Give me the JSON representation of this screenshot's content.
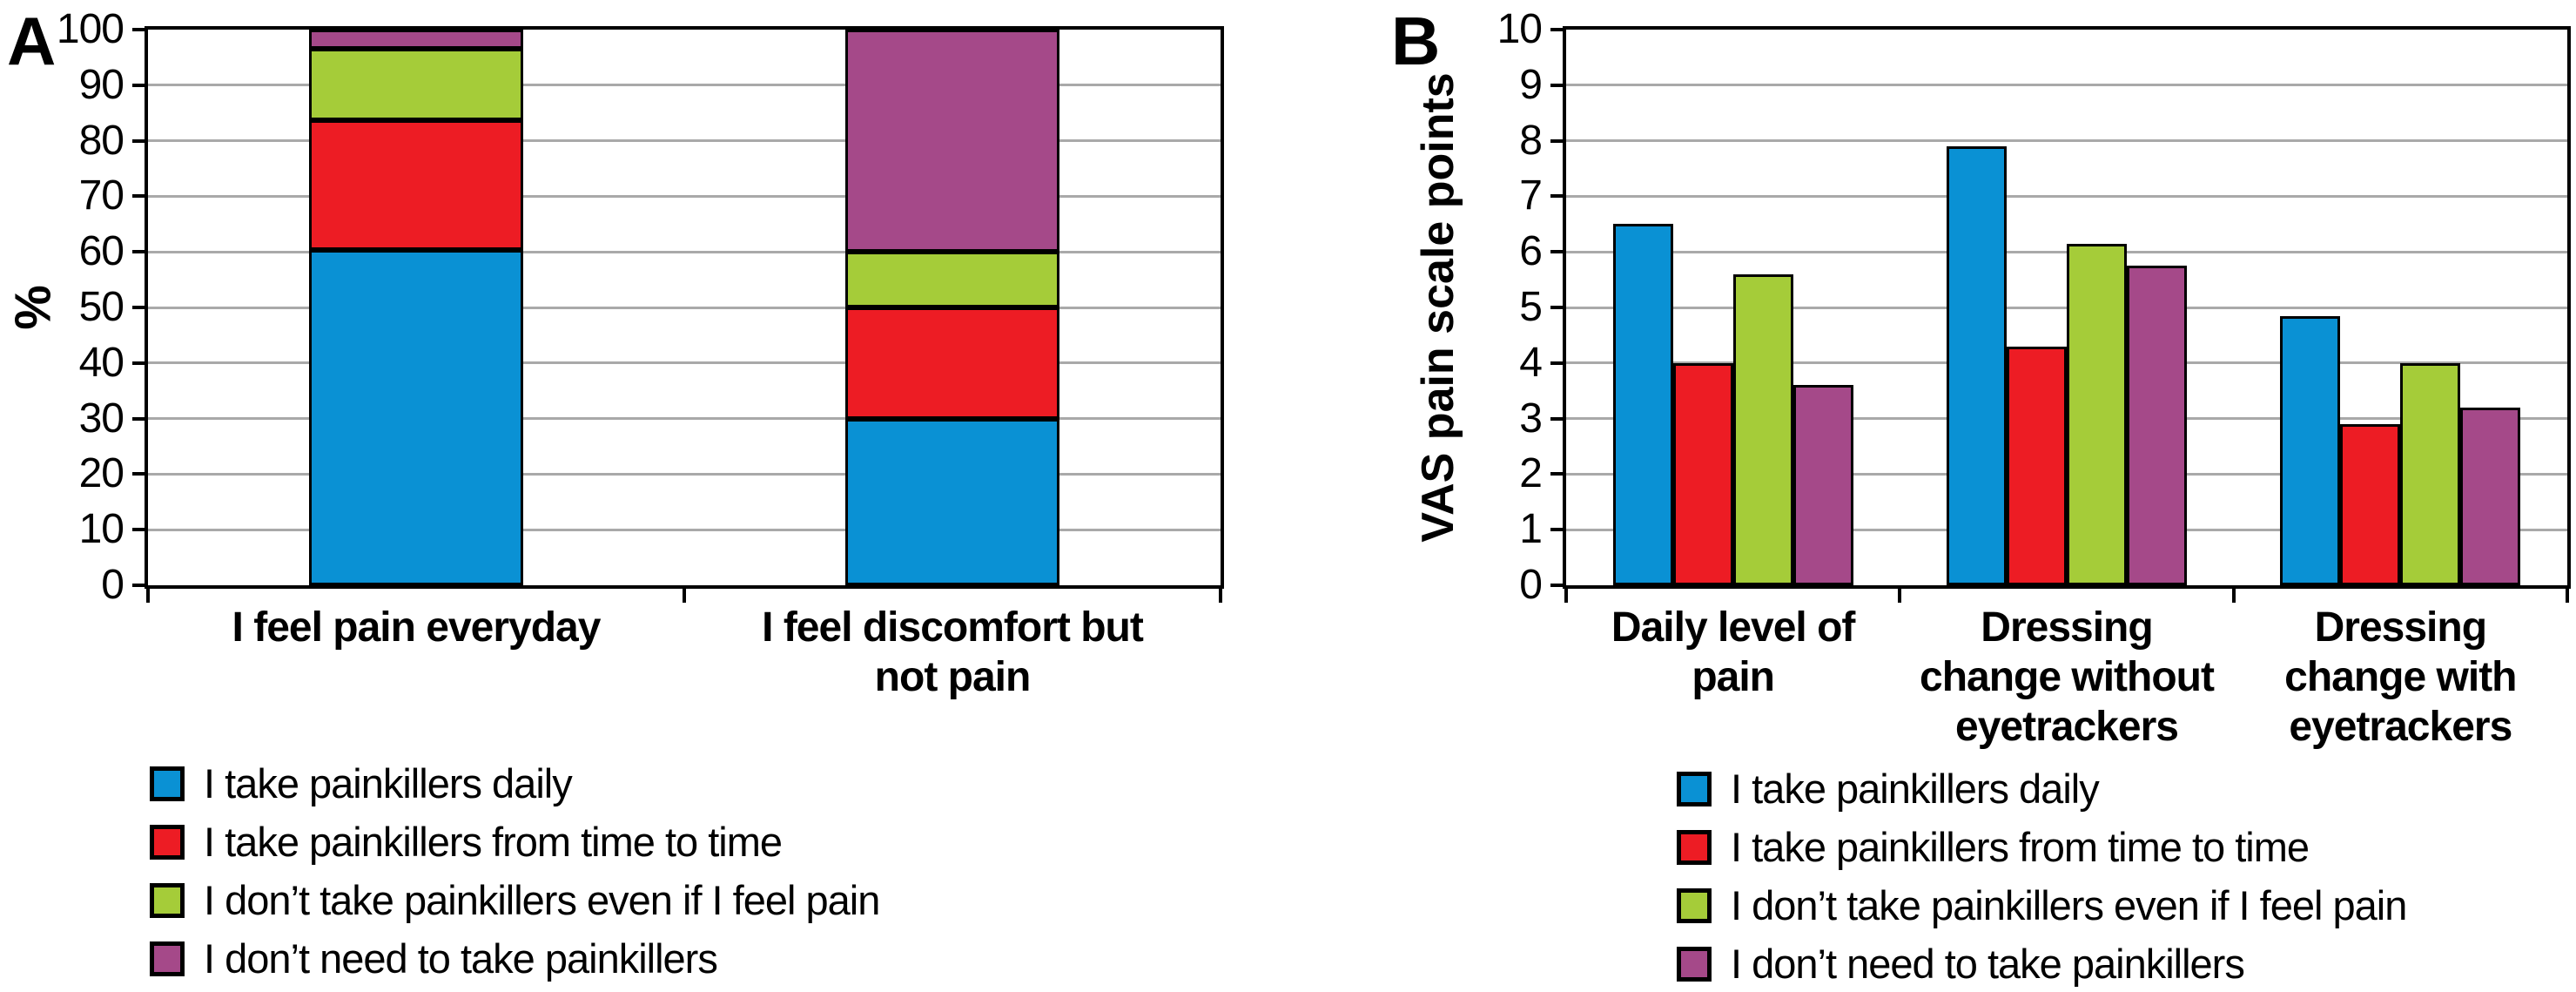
{
  "panels": {
    "a": "A",
    "b": "B"
  },
  "legend_items": [
    {
      "label": "I take painkillers daily",
      "color": "#0A91D4"
    },
    {
      "label": "I take painkillers from time to time",
      "color": "#ED1C24"
    },
    {
      "label": "I don’t take painkillers even if I feel pain",
      "color": "#A5CC39"
    },
    {
      "label": "I don’t need to take painkillers",
      "color": "#A54989"
    }
  ],
  "chart_data": [
    {
      "type": "bar",
      "panel": "A",
      "stacked": true,
      "title": "",
      "ylabel": "%",
      "xlabel": "",
      "ylim": [
        0,
        100
      ],
      "ytick_step": 10,
      "grid": true,
      "legend_position": "bottom",
      "categories": [
        "I feel pain everyday",
        "I feel discomfort but not pain"
      ],
      "categories_lines": [
        [
          "I feel pain everyday"
        ],
        [
          "I feel discomfort but",
          "not pain"
        ]
      ],
      "series": [
        {
          "name": "I take painkillers daily",
          "color": "#0A91D4",
          "values": [
            60.3,
            30
          ]
        },
        {
          "name": "I take painkillers from time to time",
          "color": "#ED1C24",
          "values": [
            23.4,
            20
          ]
        },
        {
          "name": "I don’t take painkillers even if I feel pain",
          "color": "#A5CC39",
          "values": [
            12.9,
            10
          ]
        },
        {
          "name": "I don’t need to take painkillers",
          "color": "#A54989",
          "values": [
            3.4,
            40
          ]
        }
      ]
    },
    {
      "type": "bar",
      "panel": "B",
      "stacked": false,
      "title": "",
      "ylabel": "VAS pain scale points",
      "xlabel": "",
      "ylim": [
        0,
        10
      ],
      "ytick_step": 1,
      "grid": true,
      "legend_position": "bottom",
      "categories": [
        "Daily level of pain",
        "Dressing change without eyetrackers",
        "Dressing change with eyetrackers"
      ],
      "categories_lines": [
        [
          "Daily level of",
          "pain"
        ],
        [
          "Dressing",
          "change without",
          "eyetrackers"
        ],
        [
          "Dressing",
          "change with",
          "eyetrackers"
        ]
      ],
      "series": [
        {
          "name": "I take painkillers daily",
          "color": "#0A91D4",
          "values": [
            6.5,
            7.9,
            4.85
          ]
        },
        {
          "name": "I take painkillers from time to time",
          "color": "#ED1C24",
          "values": [
            4.0,
            4.3,
            2.9
          ]
        },
        {
          "name": "I don’t take painkillers even if I feel pain",
          "color": "#A5CC39",
          "values": [
            5.6,
            6.15,
            4.0
          ]
        },
        {
          "name": "I don’t need to take painkillers",
          "color": "#A54989",
          "values": [
            3.6,
            5.75,
            3.2
          ]
        }
      ]
    }
  ]
}
